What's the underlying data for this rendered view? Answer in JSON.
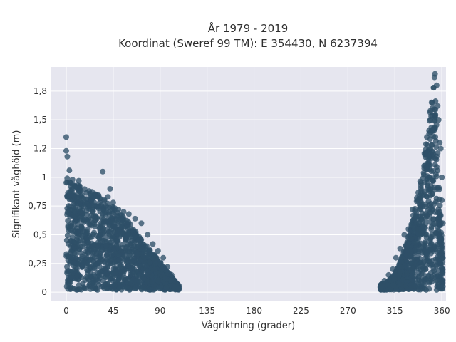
{
  "chart_data": {
    "type": "scatter",
    "title": [
      "År 1979 - 2019",
      "Koordinat (Sweref 99 TM): E 354430, N 6237394"
    ],
    "xlabel": "Vågriktning (grader)",
    "ylabel": "Signifikant våghöjd (m)",
    "xlim": [
      -15,
      364
    ],
    "ylim": [
      -0.08,
      1.96
    ],
    "xticks": [
      0,
      45,
      90,
      135,
      180,
      225,
      270,
      315,
      360
    ],
    "xtick_labels": [
      "0",
      "45",
      "90",
      "135",
      "180",
      "225",
      "270",
      "315",
      "360"
    ],
    "yticks": [
      0,
      0.25,
      0.5,
      0.75,
      1,
      1.25,
      1.5,
      1.75
    ],
    "ytick_labels": [
      "0",
      "0,25",
      "0,5",
      "0,75",
      "1",
      "1,2",
      "1,5",
      "1,8"
    ],
    "grid": true,
    "colors": {
      "marker": "#2e5068",
      "plot_background": "#e6e6ef",
      "grid": "#ffffff"
    },
    "series": [
      {
        "values": [
          [
            0,
            1.35
          ],
          [
            0,
            1.23
          ],
          [
            1,
            1.18
          ],
          [
            3,
            1.06
          ],
          [
            6,
            0.98
          ],
          [
            12,
            0.97
          ],
          [
            35,
            1.05
          ],
          [
            22,
            0.88
          ],
          [
            28,
            0.85
          ],
          [
            40,
            0.83
          ],
          [
            45,
            0.78
          ],
          [
            50,
            0.72
          ],
          [
            55,
            0.7
          ],
          [
            60,
            0.68
          ],
          [
            66,
            0.64
          ],
          [
            72,
            0.6
          ],
          [
            78,
            0.5
          ],
          [
            83,
            0.42
          ],
          [
            88,
            0.36
          ],
          [
            93,
            0.3
          ],
          [
            97,
            0.22
          ],
          [
            101,
            0.15
          ],
          [
            104,
            0.1
          ],
          [
            107,
            0.05
          ],
          [
            108,
            0.03
          ],
          [
            0.5,
            0.05
          ],
          [
            10,
            0.02
          ],
          [
            30,
            0.02
          ],
          [
            60,
            0.03
          ],
          [
            90,
            0.03
          ],
          [
            5,
            0.6
          ],
          [
            15,
            0.55
          ],
          [
            25,
            0.7
          ],
          [
            38,
            0.62
          ],
          [
            42,
            0.9
          ],
          [
            18,
            0.78
          ],
          [
            48,
            0.45
          ],
          [
            65,
            0.4
          ],
          [
            75,
            0.3
          ],
          [
            85,
            0.2
          ],
          [
            95,
            0.12
          ],
          [
            20,
            0.3
          ],
          [
            50,
            0.2
          ],
          [
            70,
            0.15
          ],
          [
            33,
            0.5
          ],
          [
            8,
            0.4
          ],
          [
            302,
            0.05
          ],
          [
            305,
            0.1
          ],
          [
            309,
            0.15
          ],
          [
            313,
            0.2
          ],
          [
            316,
            0.3
          ],
          [
            320,
            0.38
          ],
          [
            324,
            0.5
          ],
          [
            328,
            0.55
          ],
          [
            332,
            0.72
          ],
          [
            336,
            0.82
          ],
          [
            340,
            0.95
          ],
          [
            343,
            1.1
          ],
          [
            346,
            1.28
          ],
          [
            349,
            1.5
          ],
          [
            351,
            1.65
          ],
          [
            352,
            1.78
          ],
          [
            353,
            1.87
          ],
          [
            353.5,
            1.9
          ],
          [
            355,
            1.8
          ],
          [
            356,
            1.62
          ],
          [
            357,
            1.5
          ],
          [
            358,
            1.3
          ],
          [
            359,
            1.25
          ],
          [
            360,
            1.0
          ],
          [
            360,
            0.8
          ],
          [
            361,
            0.6
          ],
          [
            361,
            0.3
          ],
          [
            361,
            0.05
          ],
          [
            330,
            0.03
          ],
          [
            345,
            0.02
          ],
          [
            355,
            0.02
          ],
          [
            338,
            0.6
          ],
          [
            348,
            1.0
          ],
          [
            352,
            1.2
          ],
          [
            344,
            0.4
          ],
          [
            335,
            0.25
          ]
        ]
      }
    ]
  }
}
